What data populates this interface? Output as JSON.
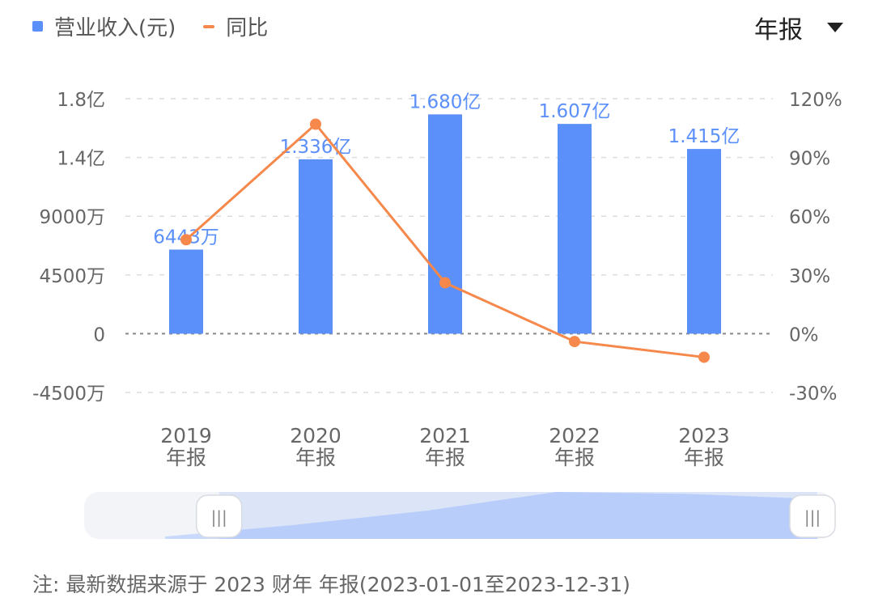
{
  "legend": {
    "revenue": {
      "label": "营业收入(元)",
      "color": "#5b8ff9"
    },
    "yoy": {
      "label": "同比",
      "color": "#f5884a"
    }
  },
  "period_selector": {
    "label": "年报",
    "icon": "caret-down-icon"
  },
  "chart_data": {
    "type": "bar",
    "categories": [
      "2019\n年报",
      "2020\n年报",
      "2021\n年报",
      "2022\n年报",
      "2023\n年报"
    ],
    "category_lines": [
      [
        "2019",
        "年报"
      ],
      [
        "2020",
        "年报"
      ],
      [
        "2021",
        "年报"
      ],
      [
        "2022",
        "年报"
      ],
      [
        "2023",
        "年报"
      ]
    ],
    "series": [
      {
        "name": "营业收入(元)",
        "type": "bar",
        "axis": "left",
        "values": [
          64430000,
          133600000,
          168000000,
          160700000,
          141500000
        ],
        "data_labels": [
          "6443万",
          "1.336亿",
          "1.680亿",
          "1.607亿",
          "1.415亿"
        ]
      },
      {
        "name": "同比",
        "type": "line",
        "axis": "right",
        "values": [
          48,
          107,
          26,
          -4,
          -12
        ]
      }
    ],
    "left_axis": {
      "ylim": [
        -45000000,
        180000000
      ],
      "ticks": [
        180000000,
        135000000,
        90000000,
        45000000,
        0,
        -45000000
      ],
      "tick_labels": [
        "1.8亿",
        "1.4亿",
        "9000万",
        "4500万",
        "0",
        "-4500万"
      ]
    },
    "right_axis": {
      "ylim": [
        -30,
        120
      ],
      "ticks": [
        120,
        90,
        60,
        30,
        0,
        -30
      ],
      "tick_labels": [
        "120%",
        "90%",
        "60%",
        "30%",
        "0%",
        "-30%"
      ]
    },
    "grid": true
  },
  "zoom_slider": {
    "start_pct": 18,
    "end_pct": 100,
    "handle_glyph": "|||",
    "overview_values": [
      5,
      30,
      60,
      100,
      96,
      85
    ]
  },
  "note": "注: 最新数据来源于 2023 财年 年报(2023-01-01至2023-12-31)"
}
